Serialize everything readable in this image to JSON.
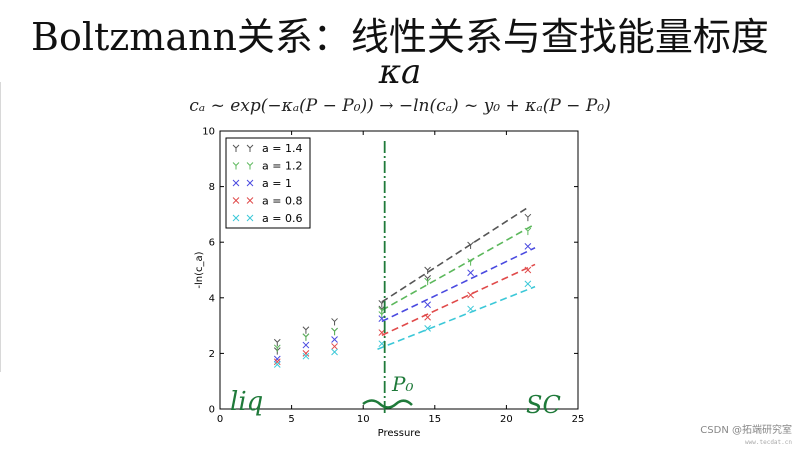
{
  "slide": {
    "title": "Boltzmann关系：线性关系与查找能量标度",
    "kappa": "κa",
    "formula": "cₐ ~ exp(−κₐ(P − P₀)) → −ln(cₐ) ~ y₀ + κₐ(P − P₀)"
  },
  "handwriting": {
    "liq": "liq",
    "p0": "P₀",
    "sc": "SC"
  },
  "watermark": {
    "line1": "CSDN @拓端研究室",
    "line2": "www.tecdat.cn"
  },
  "colors": {
    "series_1_4": "#555555",
    "series_1_2": "#5cb85c",
    "series_1": "#4a4ae0",
    "series_0_8": "#e04a4a",
    "series_0_6": "#3cc8d8",
    "vline": "#1f7a3a",
    "handwriting": "#1f7a3a"
  },
  "chart_data": {
    "type": "scatter",
    "xlabel": "Pressure",
    "ylabel": "-ln(c_a)",
    "xlim": [
      0,
      25
    ],
    "ylim": [
      0,
      10
    ],
    "xticks": [
      0,
      5,
      10,
      15,
      20,
      25
    ],
    "yticks": [
      0,
      2,
      4,
      6,
      8,
      10
    ],
    "legend_position": "top-left",
    "vline_x": 11.5,
    "series": [
      {
        "name": "a = 1.4",
        "marker": "tri",
        "color": "#555555",
        "points": [
          [
            4,
            2.4
          ],
          [
            4,
            2.1
          ],
          [
            6,
            2.85
          ],
          [
            6,
            2.6
          ],
          [
            8,
            3.15
          ],
          [
            8,
            2.8
          ],
          [
            11.3,
            3.8
          ],
          [
            11.3,
            3.6
          ],
          [
            14.5,
            5.0
          ],
          [
            14.5,
            4.7
          ],
          [
            17.5,
            5.9
          ],
          [
            21.5,
            6.9
          ]
        ],
        "fit": [
          [
            11.3,
            3.85
          ],
          [
            21.5,
            7.25
          ]
        ]
      },
      {
        "name": "a = 1.2",
        "marker": "tri",
        "color": "#5cb85c",
        "points": [
          [
            4,
            2.2
          ],
          [
            6,
            2.6
          ],
          [
            8,
            2.8
          ],
          [
            11.3,
            3.55
          ],
          [
            11.3,
            3.4
          ],
          [
            14.5,
            4.6
          ],
          [
            17.5,
            5.3
          ],
          [
            21.5,
            6.4
          ]
        ],
        "fit": [
          [
            11.3,
            3.55
          ],
          [
            22,
            6.65
          ]
        ]
      },
      {
        "name": "a = 1",
        "marker": "x",
        "color": "#4a4ae0",
        "points": [
          [
            4,
            1.8
          ],
          [
            6,
            2.3
          ],
          [
            8,
            2.5
          ],
          [
            11.3,
            3.25
          ],
          [
            14.5,
            3.75
          ],
          [
            17.5,
            4.9
          ],
          [
            21.5,
            5.85
          ]
        ],
        "fit": [
          [
            11.3,
            3.15
          ],
          [
            22,
            5.8
          ]
        ]
      },
      {
        "name": "a = 0.8",
        "marker": "x",
        "color": "#e04a4a",
        "points": [
          [
            4,
            1.7
          ],
          [
            6,
            2.0
          ],
          [
            8,
            2.25
          ],
          [
            11.3,
            2.75
          ],
          [
            14.5,
            3.3
          ],
          [
            17.5,
            4.1
          ],
          [
            21.5,
            5.0
          ]
        ],
        "fit": [
          [
            11.3,
            2.65
          ],
          [
            22,
            5.2
          ]
        ]
      },
      {
        "name": "a = 0.6",
        "marker": "x",
        "color": "#3cc8d8",
        "points": [
          [
            4,
            1.6
          ],
          [
            6,
            1.9
          ],
          [
            8,
            2.05
          ],
          [
            11.3,
            2.35
          ],
          [
            14.5,
            2.9
          ],
          [
            17.5,
            3.6
          ],
          [
            21.5,
            4.5
          ]
        ],
        "fit": [
          [
            11,
            2.15
          ],
          [
            22,
            4.4
          ]
        ]
      }
    ]
  }
}
